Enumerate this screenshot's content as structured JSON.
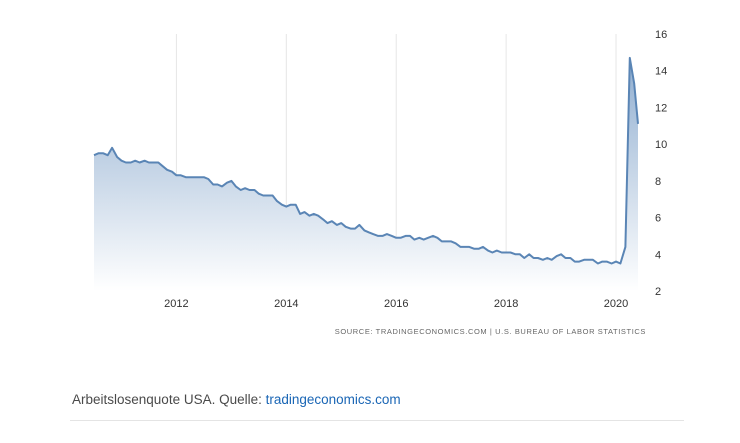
{
  "chart_data": {
    "type": "area",
    "title": "",
    "xlabel": "",
    "ylabel": "",
    "xlim": [
      2010.5,
      2020.4
    ],
    "ylim": [
      2,
      16
    ],
    "x_ticks": [
      "2012",
      "2014",
      "2016",
      "2018",
      "2020"
    ],
    "y_ticks": [
      "2",
      "4",
      "6",
      "8",
      "10",
      "12",
      "14",
      "16"
    ],
    "grid": "vertical",
    "y_axis_side": "right",
    "colors": {
      "line": "#5a85b5",
      "fill_top": "#90aed0",
      "fill_bottom": "#ffffff",
      "grid": "#e6e6e6"
    },
    "series": [
      {
        "x": [
          2010.5,
          2010.58,
          2010.67,
          2010.75,
          2010.83,
          2010.92,
          2011.0,
          2011.08,
          2011.17,
          2011.25,
          2011.33,
          2011.42,
          2011.5,
          2011.58,
          2011.67,
          2011.75,
          2011.83,
          2011.92,
          2012.0,
          2012.08,
          2012.17,
          2012.25,
          2012.33,
          2012.42,
          2012.5,
          2012.58,
          2012.67,
          2012.75,
          2012.83,
          2012.92,
          2013.0,
          2013.08,
          2013.17,
          2013.25,
          2013.33,
          2013.42,
          2013.5,
          2013.58,
          2013.67,
          2013.75,
          2013.83,
          2013.92,
          2014.0,
          2014.08,
          2014.17,
          2014.25,
          2014.33,
          2014.42,
          2014.5,
          2014.58,
          2014.67,
          2014.75,
          2014.83,
          2014.92,
          2015.0,
          2015.08,
          2015.17,
          2015.25,
          2015.33,
          2015.42,
          2015.5,
          2015.58,
          2015.67,
          2015.75,
          2015.83,
          2015.92,
          2016.0,
          2016.08,
          2016.17,
          2016.25,
          2016.33,
          2016.42,
          2016.5,
          2016.58,
          2016.67,
          2016.75,
          2016.83,
          2016.92,
          2017.0,
          2017.08,
          2017.17,
          2017.25,
          2017.33,
          2017.42,
          2017.5,
          2017.58,
          2017.67,
          2017.75,
          2017.83,
          2017.92,
          2018.0,
          2018.08,
          2018.17,
          2018.25,
          2018.33,
          2018.42,
          2018.5,
          2018.58,
          2018.67,
          2018.75,
          2018.83,
          2018.92,
          2019.0,
          2019.08,
          2019.17,
          2019.25,
          2019.33,
          2019.42,
          2019.5,
          2019.58,
          2019.67,
          2019.75,
          2019.83,
          2019.92,
          2020.0,
          2020.08,
          2020.17,
          2020.25,
          2020.33,
          2020.4
        ],
        "values": [
          9.4,
          9.5,
          9.5,
          9.4,
          9.8,
          9.3,
          9.1,
          9.0,
          9.0,
          9.1,
          9.0,
          9.1,
          9.0,
          9.0,
          9.0,
          8.8,
          8.6,
          8.5,
          8.3,
          8.3,
          8.2,
          8.2,
          8.2,
          8.2,
          8.2,
          8.1,
          7.8,
          7.8,
          7.7,
          7.9,
          8.0,
          7.7,
          7.5,
          7.6,
          7.5,
          7.5,
          7.3,
          7.2,
          7.2,
          7.2,
          6.9,
          6.7,
          6.6,
          6.7,
          6.7,
          6.2,
          6.3,
          6.1,
          6.2,
          6.1,
          5.9,
          5.7,
          5.8,
          5.6,
          5.7,
          5.5,
          5.4,
          5.4,
          5.6,
          5.3,
          5.2,
          5.1,
          5.0,
          5.0,
          5.1,
          5.0,
          4.9,
          4.9,
          5.0,
          5.0,
          4.8,
          4.9,
          4.8,
          4.9,
          5.0,
          4.9,
          4.7,
          4.7,
          4.7,
          4.6,
          4.4,
          4.4,
          4.4,
          4.3,
          4.3,
          4.4,
          4.2,
          4.1,
          4.2,
          4.1,
          4.1,
          4.1,
          4.0,
          4.0,
          3.8,
          4.0,
          3.8,
          3.8,
          3.7,
          3.8,
          3.7,
          3.9,
          4.0,
          3.8,
          3.8,
          3.6,
          3.6,
          3.7,
          3.7,
          3.7,
          3.5,
          3.6,
          3.6,
          3.5,
          3.6,
          3.5,
          4.4,
          14.7,
          13.3,
          11.1
        ]
      }
    ],
    "source": "SOURCE: TRADINGECONOMICS.COM  |  U.S. BUREAU OF LABOR STATISTICS"
  },
  "caption": {
    "text": "Arbeitslosenquote USA. Quelle: ",
    "link": "tradingeconomics.com"
  }
}
